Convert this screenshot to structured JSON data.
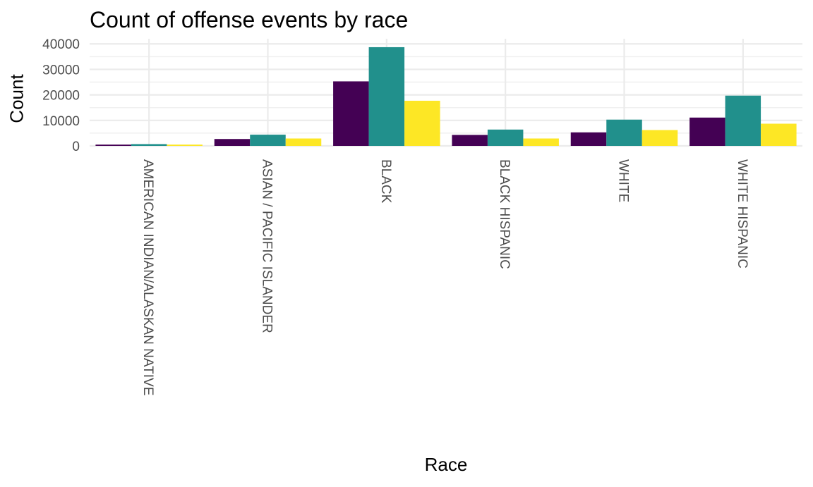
{
  "chart_data": {
    "type": "bar",
    "title": "Count of offense events by race",
    "xlabel": "Race",
    "ylabel": "Count",
    "ylim": [
      0,
      40000
    ],
    "yticks": [
      0,
      10000,
      20000,
      30000,
      40000
    ],
    "ytick_labels": [
      "0",
      "10000",
      "20000",
      "30000",
      "40000"
    ],
    "grid": true,
    "legend": "none",
    "categories": [
      "AMERICAN INDIAN/ALASKAN NATIVE",
      "ASIAN / PACIFIC ISLANDER",
      "BLACK",
      "BLACK HISPANIC",
      "WHITE",
      "WHITE HISPANIC"
    ],
    "series": [
      {
        "color": "#440154",
        "values": [
          500,
          2700,
          25300,
          4300,
          5300,
          11100
        ]
      },
      {
        "color": "#21908C",
        "values": [
          700,
          4400,
          38700,
          6400,
          10300,
          19700
        ]
      },
      {
        "color": "#FDE725",
        "values": [
          500,
          2900,
          17700,
          2900,
          6200,
          8700
        ]
      }
    ]
  }
}
